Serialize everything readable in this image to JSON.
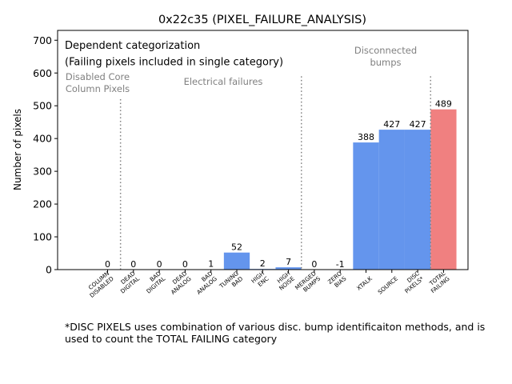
{
  "chart_data": {
    "type": "bar",
    "title": "0x22c35 (PIXEL_FAILURE_ANALYSIS)",
    "xlabel": "",
    "ylabel": "Number of pixels",
    "ylim": [
      0,
      730
    ],
    "yticks": [
      0,
      100,
      200,
      300,
      400,
      500,
      600,
      700
    ],
    "grid": false,
    "categories": [
      "COLUMN DISABLED",
      "DEAD DIGITAL",
      "BAD DIGITAL",
      "DEAD ANALOG",
      "BAD ANALOG",
      "TUNING BAD",
      "HIGH ENC",
      "HIGH NOISE",
      "MERGED BUMPS",
      "ZERO BIAS",
      "XTALK",
      "SOURCE",
      "DISC PIXELS*",
      "TOTAL FAILING"
    ],
    "tick_labels": [
      [
        "COLUMN",
        "DISABLED"
      ],
      [
        "DEAD",
        "DIGITAL"
      ],
      [
        "BAD",
        "DIGITAL"
      ],
      [
        "DEAD",
        "ANALOG"
      ],
      [
        "BAD",
        "ANALOG"
      ],
      [
        "TUNING",
        "BAD"
      ],
      [
        "HIGH",
        "ENC"
      ],
      [
        "HIGH",
        "NOISE"
      ],
      [
        "MERGED",
        "BUMPS"
      ],
      [
        "ZERO",
        "BIAS"
      ],
      [
        "XTALK"
      ],
      [
        "SOURCE"
      ],
      [
        "DISC",
        "PIXELS*"
      ],
      [
        "TOTAL",
        "FAILING"
      ]
    ],
    "values": [
      0,
      0,
      0,
      0,
      1,
      52,
      2,
      7,
      0,
      -1,
      388,
      427,
      427,
      489
    ],
    "data_labels": [
      "0",
      "0",
      "0",
      "0",
      "1",
      "52",
      "2",
      "7",
      "0",
      "-1",
      "388",
      "427",
      "427",
      "489"
    ],
    "bar_colors": [
      "#6495ed",
      "#6495ed",
      "#6495ed",
      "#6495ed",
      "#6495ed",
      "#6495ed",
      "#6495ed",
      "#6495ed",
      "#6495ed",
      "#6495ed",
      "#6495ed",
      "#6495ed",
      "#6495ed",
      "#f08080"
    ],
    "separators": [
      {
        "after_index": 0,
        "top_value": 520
      },
      {
        "after_index": 7,
        "top_value": 590
      },
      {
        "after_index": 12,
        "top_value": 590
      }
    ],
    "group_labels": [
      {
        "lines": [
          "Disabled Core",
          "Column Pixels"
        ]
      },
      {
        "lines": [
          "Electrical failures"
        ]
      },
      {
        "lines": [
          "Disconnected",
          "bumps"
        ]
      }
    ],
    "annotation": {
      "lines": [
        "Dependent categorization",
        "(Failing pixels included in single category)"
      ],
      "placement": "top-left"
    }
  },
  "footnote": "*DISC PIXELS uses combination of various disc. bump identificaiton methods, and is used to count the TOTAL FAILING category"
}
